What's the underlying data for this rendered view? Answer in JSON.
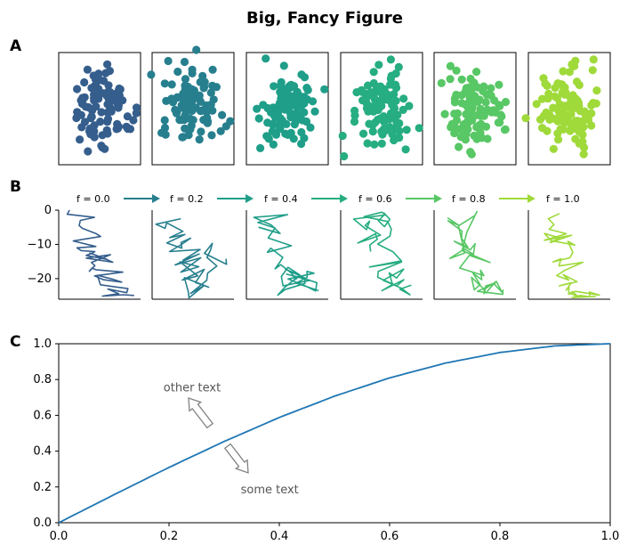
{
  "figure": {
    "title": "Big, Fancy Figure",
    "panel_labels": [
      "A",
      "B",
      "C"
    ]
  },
  "colors": {
    "viridis": [
      "#355e8d",
      "#277f8e",
      "#1f9e89",
      "#26ad81",
      "#58c765",
      "#9fda3a"
    ],
    "curve": "#1f77b4",
    "annotation": "#555555"
  },
  "chart_data": [
    {
      "type": "scatter",
      "panel": "A",
      "description_count": 6,
      "series": [
        {
          "color_index": 0,
          "points": 100
        },
        {
          "color_index": 1,
          "points": 100
        },
        {
          "color_index": 2,
          "points": 100
        },
        {
          "color_index": 3,
          "points": 100
        },
        {
          "color_index": 4,
          "points": 100
        },
        {
          "color_index": 5,
          "points": 100
        }
      ],
      "xticks": [],
      "yticks": []
    },
    {
      "type": "line",
      "panel": "B",
      "f_labels": [
        "f = 0.0",
        "f = 0.2",
        "f = 0.4",
        "f = 0.6",
        "f = 0.8",
        "f = 1.0"
      ],
      "ylim": [
        -26,
        0
      ],
      "yticks": [
        0,
        -10,
        -20
      ],
      "ytick_labels": [
        "0",
        "−10",
        "−20"
      ],
      "series": [
        {
          "color_index": 0,
          "x": [
            0,
            1,
            2,
            3,
            4,
            5,
            6,
            7,
            8,
            9,
            10,
            11,
            12,
            13,
            14,
            15,
            16,
            17,
            18,
            19,
            20,
            21,
            22,
            23,
            24,
            25,
            26,
            27,
            28,
            29,
            30,
            31,
            32,
            33,
            34,
            35,
            36,
            37,
            38,
            39
          ],
          "y": [
            0,
            -1.2,
            -2.1,
            -3,
            -4.5,
            -5.3,
            -6.8,
            -7.7,
            -9,
            -10.6,
            -11,
            -11.8,
            -12.1,
            -12.6,
            -13.2,
            -14.4,
            -12.5,
            -13.9,
            -15.2,
            -14,
            -13,
            -15.3,
            -16.2,
            -17.8,
            -16.9,
            -17.4,
            -18.1,
            -19.2,
            -20.3,
            -21,
            -20.2,
            -19,
            -21.8,
            -22.9,
            -24.1,
            -23,
            -24.4,
            -25.1,
            -24.7,
            -24.9
          ]
        },
        {
          "color_index": 1,
          "x": [
            0,
            1,
            2,
            3,
            4,
            5,
            6,
            7,
            8,
            9,
            10,
            11,
            12,
            13,
            14,
            15,
            16,
            17,
            18,
            19,
            20,
            21,
            22,
            23,
            24,
            25,
            26,
            27,
            28,
            29,
            30,
            31,
            32,
            33,
            34,
            35,
            36,
            37,
            38,
            39
          ],
          "y": [
            -2.5,
            -4.1,
            -5.3,
            -3.7,
            -6.2,
            -8,
            -7.1,
            -9.6,
            -11.1,
            -9.4,
            -8.2,
            -10,
            -12.1,
            -11.5,
            -14.6,
            -12.8,
            -16,
            -13.9,
            -18.1,
            -16.5,
            -15.1,
            -19.2,
            -20.4,
            -17.3,
            -21.1,
            -22.5,
            -19.7,
            -23.8,
            -25.6,
            -22.1,
            -24.3,
            -20.5,
            -18.4,
            -16.3,
            -13.8,
            -11.7,
            -9.7,
            -12.6,
            -15.8,
            -14.2
          ]
        },
        {
          "color_index": 2,
          "x": [
            0,
            1,
            2,
            3,
            4,
            5,
            6,
            7,
            8,
            9,
            10,
            11,
            12,
            13,
            14,
            15,
            16,
            17,
            18,
            19,
            20,
            21,
            22,
            23,
            24,
            25,
            26,
            27,
            28,
            29,
            30,
            31,
            32,
            33,
            34,
            35,
            36,
            37,
            38,
            39
          ],
          "y": [
            -5,
            -6.8,
            -4.3,
            -2.1,
            -1.3,
            -3.6,
            -5.2,
            -8.1,
            -10.4,
            -12.3,
            -11.1,
            -13.8,
            -15.2,
            -17.1,
            -15.9,
            -18.5,
            -20.2,
            -19,
            -22.7,
            -24.8,
            -23.2,
            -21.4,
            -19.8,
            -17.3,
            -18.9,
            -16.7,
            -19.4,
            -22.1,
            -20.5,
            -18.7,
            -19.9,
            -21.2,
            -23.6,
            -22.3,
            -20.1,
            -18.4,
            -17.9,
            -19.6,
            -21.3,
            -23.5
          ]
        },
        {
          "color_index": 3,
          "x": [
            0,
            1,
            2,
            3,
            4,
            5,
            6,
            7,
            8,
            9,
            10,
            11,
            12,
            13,
            14,
            15,
            16,
            17,
            18,
            19,
            20,
            21,
            22,
            23,
            24,
            25,
            26,
            27,
            28,
            29,
            30,
            31,
            32,
            33,
            34,
            35,
            36,
            37,
            38,
            39
          ],
          "y": [
            -12.1,
            -10.2,
            -8.5,
            -6.9,
            -9.6,
            -7.3,
            -4.5,
            -3.2,
            -5.7,
            -2.6,
            -1.4,
            -0.8,
            -2.7,
            -4.8,
            -3.1,
            -1.2,
            -0.6,
            -1.9,
            -3.3,
            -5.5,
            -7.6,
            -9.9,
            -12.2,
            -14.8,
            -16.6,
            -15.1,
            -17.9,
            -19.6,
            -22.1,
            -20.3,
            -23.5,
            -21.7,
            -18.3,
            -19.8,
            -17.2,
            -20.5,
            -22.8,
            -24.7,
            -23.1,
            -21.9
          ]
        },
        {
          "color_index": 4,
          "x": [
            0,
            1,
            2,
            3,
            4,
            5,
            6,
            7,
            8,
            9,
            10,
            11,
            12,
            13,
            14,
            15,
            16,
            17,
            18,
            19,
            20,
            21,
            22,
            23,
            24,
            25,
            26,
            27,
            28,
            29,
            30,
            31,
            32,
            33,
            34,
            35,
            36,
            37,
            38,
            39
          ],
          "y": [
            -2.2,
            -4.4,
            -3.1,
            -6.1,
            -8.2,
            -10.8,
            -9.1,
            -11.6,
            -9.8,
            -12.9,
            -11.3,
            -14.1,
            -12.5,
            -4.6,
            -1.5,
            -0.4,
            -6.4,
            -11.8,
            -15.3,
            -13.2,
            -16.9,
            -19.1,
            -17.5,
            -20.3,
            -18.4,
            -21.7,
            -23.3,
            -19.6,
            -22.6,
            -24.2,
            -21.5,
            -23.9,
            -20.8,
            -22.9,
            -24.4,
            -22.1,
            -21.3,
            -23.7,
            -24.6,
            -23.2
          ]
        },
        {
          "color_index": 5,
          "x": [
            0,
            1,
            2,
            3,
            4,
            5,
            6,
            7,
            8,
            9,
            10,
            11,
            12,
            13,
            14,
            15,
            16,
            17,
            18,
            19,
            20,
            21,
            22,
            23,
            24,
            25,
            26,
            27,
            28,
            29,
            30,
            31,
            32,
            33,
            34,
            35,
            36,
            37,
            38,
            39
          ],
          "y": [
            -1,
            -2.5,
            -4.2,
            -5.6,
            -6.9,
            -7.8,
            -8.8,
            -7.3,
            -9.5,
            -8.1,
            -6.8,
            -8.9,
            -10.2,
            -9.1,
            -12.4,
            -13.9,
            -15.1,
            -14.2,
            -16.3,
            -15.2,
            -17.6,
            -19.1,
            -20.4,
            -18.8,
            -20.9,
            -22.1,
            -21.2,
            -23.4,
            -22.5,
            -24.6,
            -23.8,
            -25.1,
            -24.3,
            -23.7,
            -24.8,
            -23.9,
            -25.3,
            -24.9,
            -25.5,
            -25.2
          ]
        }
      ]
    },
    {
      "type": "line",
      "panel": "C",
      "xlim": [
        0,
        1
      ],
      "ylim": [
        0,
        1
      ],
      "xticks": [
        "0.0",
        "0.2",
        "0.4",
        "0.6",
        "0.8",
        "1.0"
      ],
      "yticks": [
        "0.0",
        "0.2",
        "0.4",
        "0.6",
        "0.8",
        "1.0"
      ],
      "series": [
        {
          "x": [
            0,
            0.1,
            0.2,
            0.3,
            0.4,
            0.5,
            0.6,
            0.7,
            0.8,
            0.9,
            1.0
          ],
          "y": [
            0,
            0.156,
            0.309,
            0.454,
            0.588,
            0.707,
            0.809,
            0.891,
            0.951,
            0.988,
            1.0
          ]
        }
      ],
      "annotations": [
        {
          "text": "other text",
          "x": 0.19,
          "y": 0.75
        },
        {
          "text": "some text",
          "x": 0.33,
          "y": 0.19
        }
      ]
    }
  ]
}
